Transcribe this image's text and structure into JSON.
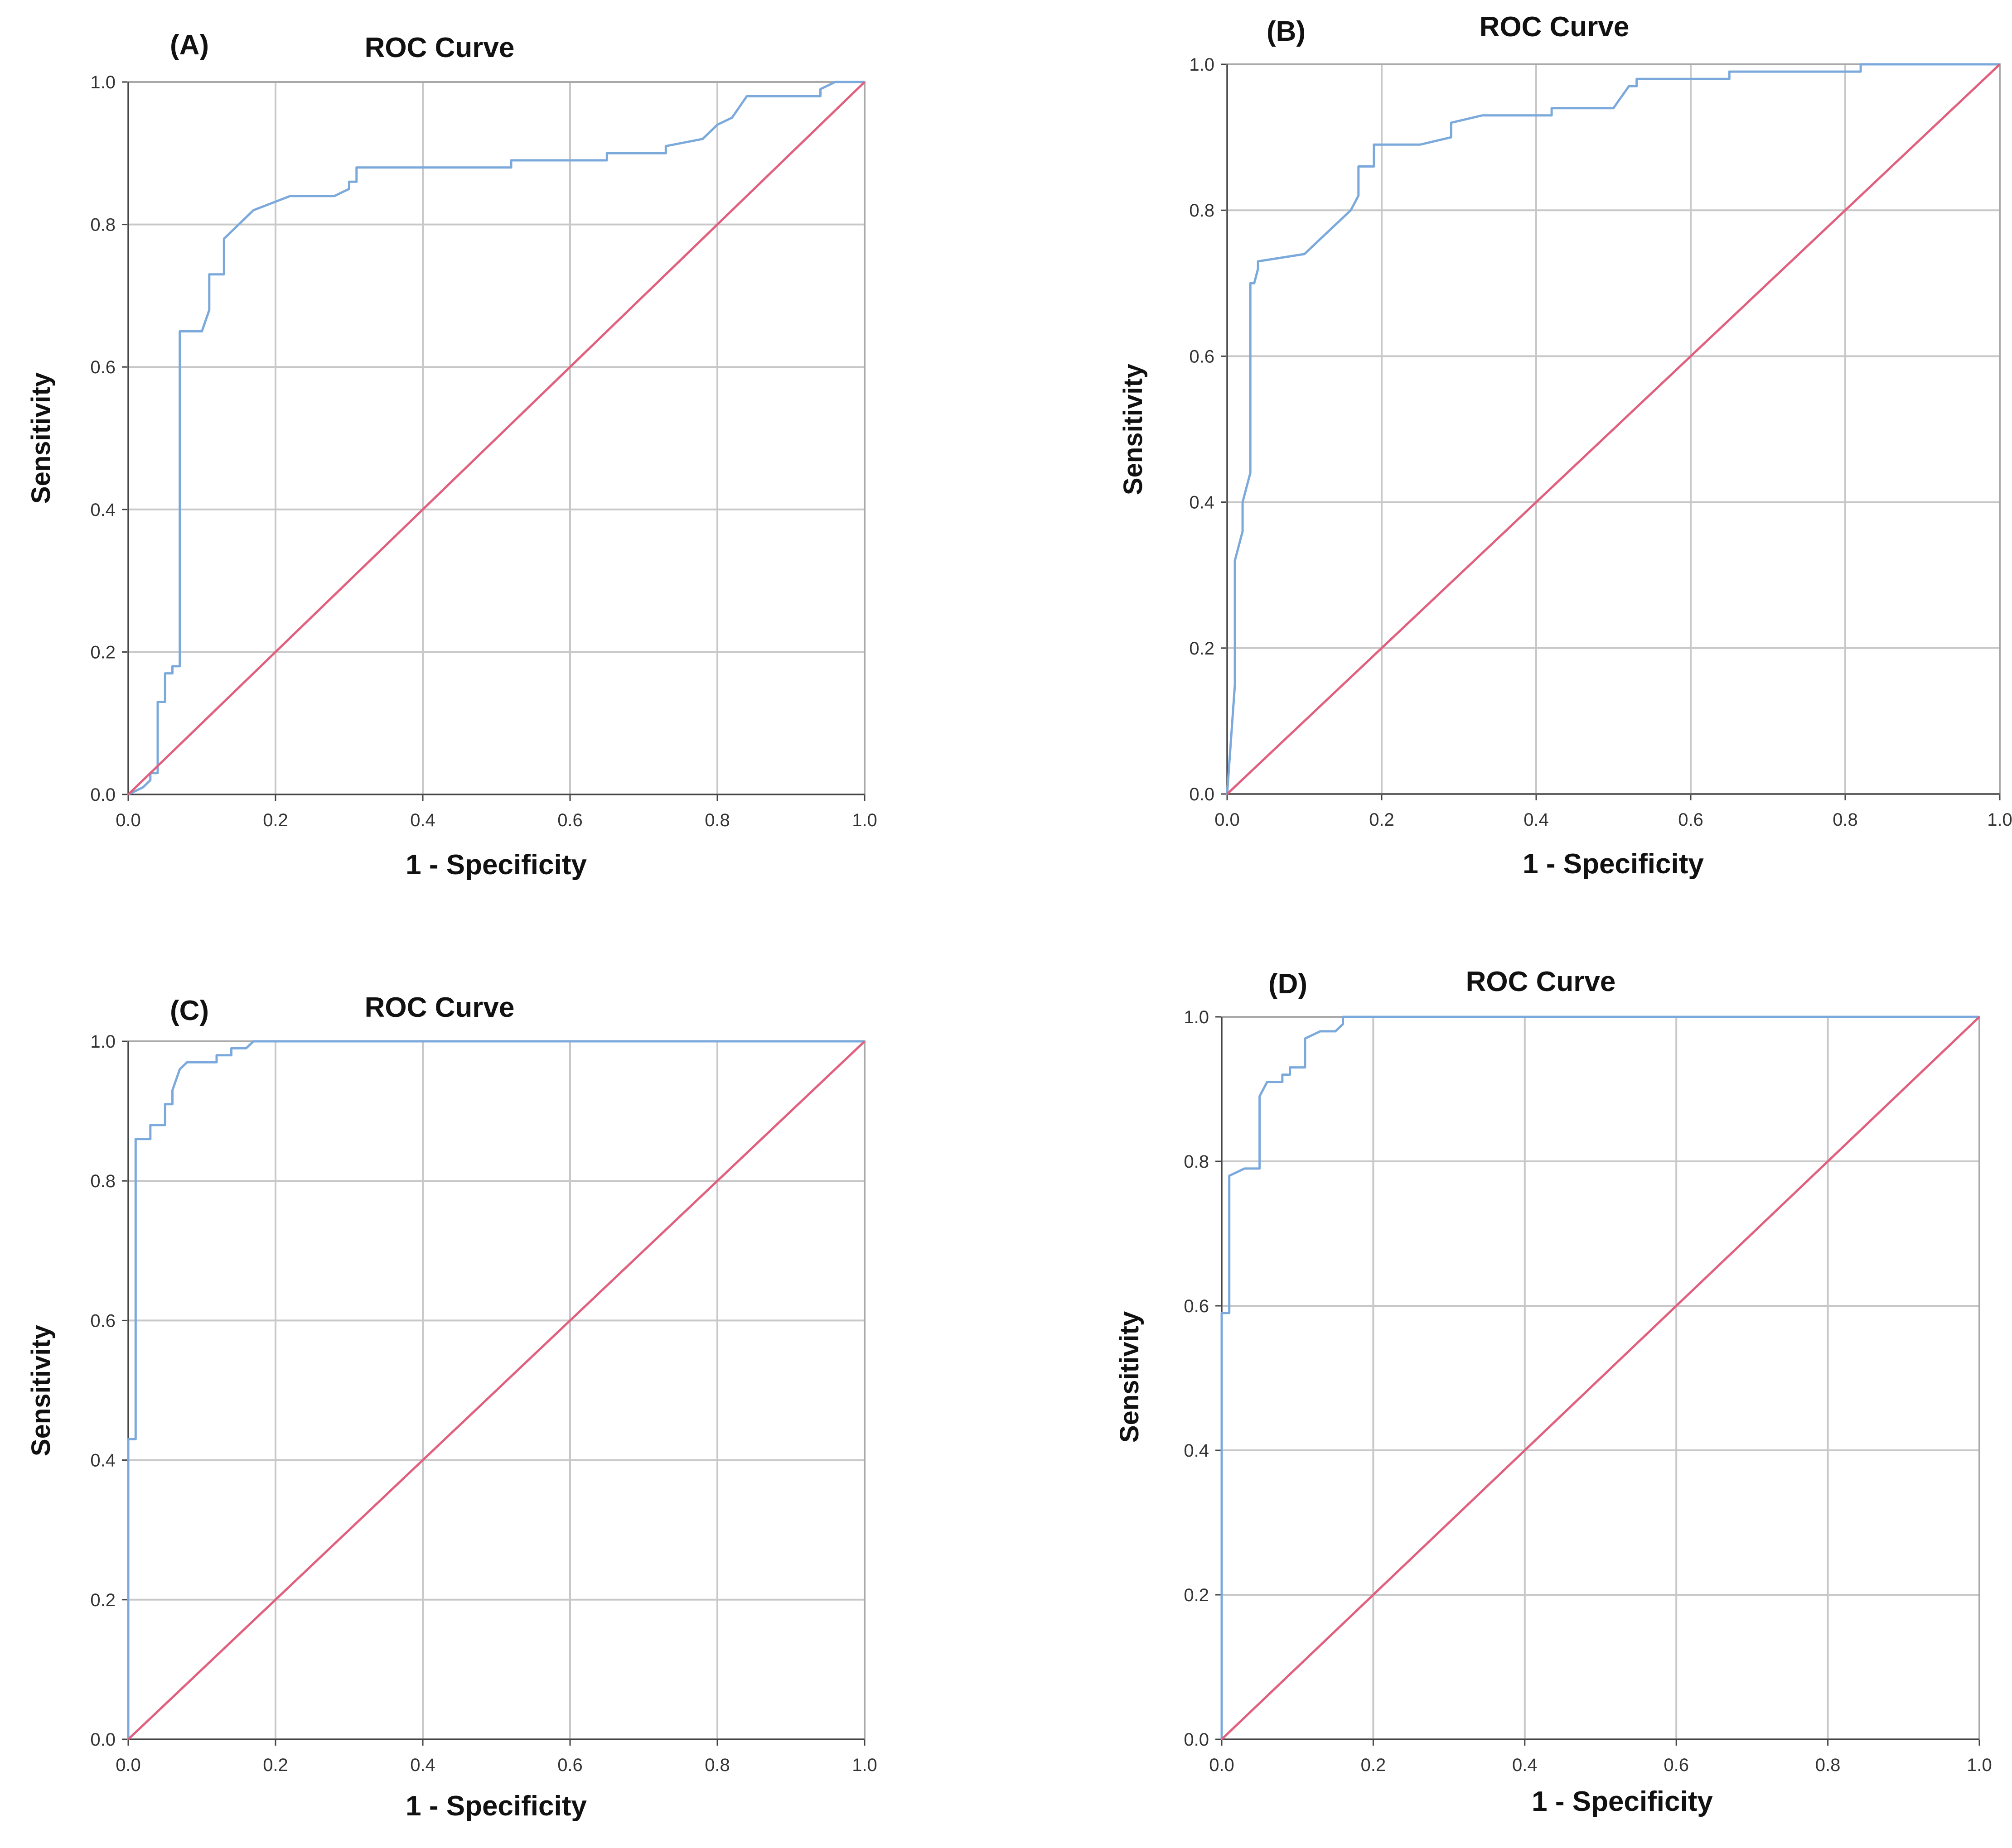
{
  "figure": {
    "colors": {
      "roc_curve": "#7ba9dc",
      "reference_line": "#e0607e",
      "grid": "#c8c8c8"
    }
  },
  "chart_data": [
    {
      "type": "line",
      "panel_label": "(A)",
      "title": "ROC Curve",
      "xlabel": "1 - Specificity",
      "ylabel": "Sensitivity",
      "xlim": [
        0,
        1
      ],
      "ylim": [
        0,
        1
      ],
      "xticks": [
        "0.0",
        "0.2",
        "0.4",
        "0.6",
        "0.8",
        "1.0"
      ],
      "yticks": [
        "0.0",
        "0.2",
        "0.4",
        "0.6",
        "0.8",
        "1.0"
      ],
      "grid": true,
      "series": [
        {
          "name": "ROC curve",
          "x": [
            0,
            0.02,
            0.03,
            0.03,
            0.04,
            0.04,
            0.04,
            0.05,
            0.05,
            0.06,
            0.06,
            0.07,
            0.07,
            0.07,
            0.1,
            0.11,
            0.11,
            0.13,
            0.13,
            0.15,
            0.15,
            0.17,
            0.17,
            0.22,
            0.28,
            0.3,
            0.3,
            0.31,
            0.31,
            0.52,
            0.52,
            0.65,
            0.65,
            0.73,
            0.73,
            0.78,
            0.78,
            0.8,
            0.8,
            0.82,
            0.84,
            0.94,
            0.94,
            0.96,
            0.98,
            1.0
          ],
          "y": [
            0,
            0.01,
            0.02,
            0.03,
            0.03,
            0.04,
            0.13,
            0.13,
            0.17,
            0.17,
            0.18,
            0.18,
            0.4,
            0.65,
            0.65,
            0.68,
            0.73,
            0.73,
            0.78,
            0.8,
            0.8,
            0.82,
            0.82,
            0.84,
            0.84,
            0.85,
            0.86,
            0.86,
            0.88,
            0.88,
            0.89,
            0.89,
            0.9,
            0.9,
            0.91,
            0.92,
            0.92,
            0.94,
            0.94,
            0.95,
            0.98,
            0.98,
            0.99,
            1.0,
            1.0,
            1.0
          ]
        },
        {
          "name": "Reference line",
          "x": [
            0,
            1
          ],
          "y": [
            0,
            1
          ]
        }
      ]
    },
    {
      "type": "line",
      "panel_label": "(B)",
      "title": "ROC Curve",
      "xlabel": "1 - Specificity",
      "ylabel": "Sensitivity",
      "xlim": [
        0,
        1
      ],
      "ylim": [
        0,
        1
      ],
      "xticks": [
        "0.0",
        "0.2",
        "0.4",
        "0.6",
        "0.8",
        "1.0"
      ],
      "yticks": [
        "0.0",
        "0.2",
        "0.4",
        "0.6",
        "0.8",
        "1.0"
      ],
      "grid": true,
      "series": [
        {
          "name": "ROC curve",
          "x": [
            0,
            0.01,
            0.01,
            0.01,
            0.02,
            0.02,
            0.025,
            0.03,
            0.03,
            0.035,
            0.04,
            0.04,
            0.1,
            0.12,
            0.14,
            0.16,
            0.17,
            0.17,
            0.19,
            0.19,
            0.25,
            0.29,
            0.29,
            0.33,
            0.33,
            0.42,
            0.42,
            0.45,
            0.5,
            0.52,
            0.53,
            0.53,
            0.62,
            0.65,
            0.65,
            0.8,
            0.82,
            0.82,
            1.0
          ],
          "y": [
            0,
            0.15,
            0.3,
            0.32,
            0.36,
            0.4,
            0.42,
            0.44,
            0.7,
            0.7,
            0.72,
            0.73,
            0.74,
            0.76,
            0.78,
            0.8,
            0.82,
            0.86,
            0.86,
            0.89,
            0.89,
            0.9,
            0.92,
            0.93,
            0.93,
            0.93,
            0.94,
            0.94,
            0.94,
            0.97,
            0.97,
            0.98,
            0.98,
            0.98,
            0.99,
            0.99,
            0.99,
            1.0,
            1.0
          ]
        },
        {
          "name": "Reference line",
          "x": [
            0,
            1
          ],
          "y": [
            0,
            1
          ]
        }
      ]
    },
    {
      "type": "line",
      "panel_label": "(C)",
      "title": "ROC Curve",
      "xlabel": "1 - Specificity",
      "ylabel": "Sensitivity",
      "xlim": [
        0,
        1
      ],
      "ylim": [
        0,
        1
      ],
      "xticks": [
        "0.0",
        "0.2",
        "0.4",
        "0.6",
        "0.8",
        "1.0"
      ],
      "yticks": [
        "0.0",
        "0.2",
        "0.4",
        "0.6",
        "0.8",
        "1.0"
      ],
      "grid": true,
      "series": [
        {
          "name": "ROC curve",
          "x": [
            0,
            0,
            0.01,
            0.01,
            0.03,
            0.03,
            0.05,
            0.05,
            0.06,
            0.06,
            0.07,
            0.08,
            0.08,
            0.12,
            0.12,
            0.14,
            0.14,
            0.16,
            0.17,
            1.0
          ],
          "y": [
            0,
            0.43,
            0.43,
            0.86,
            0.86,
            0.88,
            0.88,
            0.91,
            0.91,
            0.93,
            0.96,
            0.97,
            0.97,
            0.97,
            0.98,
            0.98,
            0.99,
            0.99,
            1.0,
            1.0
          ]
        },
        {
          "name": "Reference line",
          "x": [
            0,
            1
          ],
          "y": [
            0,
            1
          ]
        }
      ]
    },
    {
      "type": "line",
      "panel_label": "(D)",
      "title": "ROC Curve",
      "xlabel": "1 - Specificity",
      "ylabel": "Sensitivity",
      "xlim": [
        0,
        1
      ],
      "ylim": [
        0,
        1
      ],
      "xticks": [
        "0.0",
        "0.2",
        "0.4",
        "0.6",
        "0.8",
        "1.0"
      ],
      "yticks": [
        "0.0",
        "0.2",
        "0.4",
        "0.6",
        "0.8",
        "1.0"
      ],
      "grid": true,
      "series": [
        {
          "name": "ROC curve",
          "x": [
            0,
            0,
            0.01,
            0.01,
            0.03,
            0.05,
            0.05,
            0.06,
            0.08,
            0.08,
            0.09,
            0.09,
            0.11,
            0.11,
            0.13,
            0.15,
            0.16,
            0.16,
            1.0
          ],
          "y": [
            0,
            0.59,
            0.59,
            0.78,
            0.79,
            0.79,
            0.89,
            0.91,
            0.91,
            0.92,
            0.92,
            0.93,
            0.93,
            0.97,
            0.98,
            0.98,
            0.99,
            1.0,
            1.0
          ]
        },
        {
          "name": "Reference line",
          "x": [
            0,
            1
          ],
          "y": [
            0,
            1
          ]
        }
      ]
    }
  ]
}
